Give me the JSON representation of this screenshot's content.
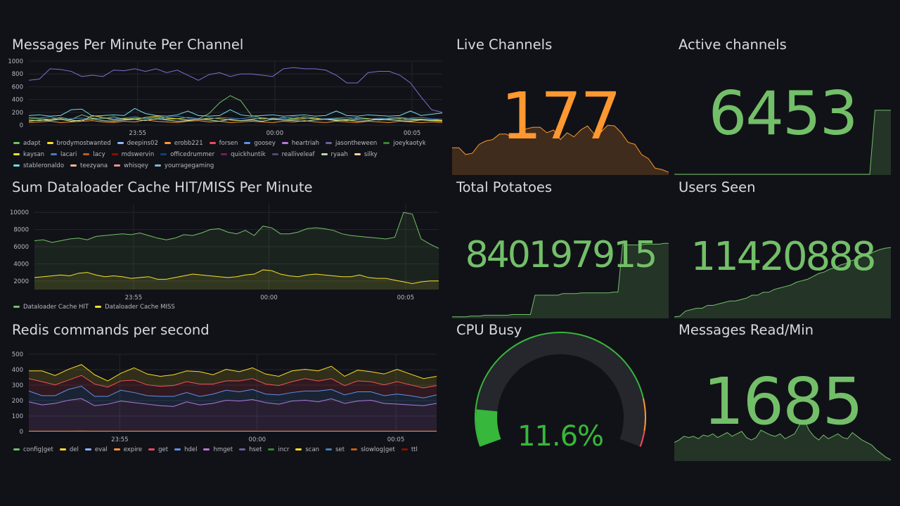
{
  "colors": {
    "bg": "#111217",
    "grid": "#24262c",
    "green": "#73bf69",
    "orange": "#ff9830",
    "yellow": "#fade2a",
    "red": "#f2495c",
    "blue": "#5794f2",
    "purple": "#b877d9",
    "gaugeTrack": "#25272d",
    "gaugeGreen": "#37b73b"
  },
  "panels": {
    "messages": {
      "title": "Messages Per Minute Per Channel",
      "legend": [
        {
          "name": "adapt",
          "color": "#73bf69"
        },
        {
          "name": "brodymostwanted",
          "color": "#fade2a"
        },
        {
          "name": "deepins02",
          "color": "#8ab8ff"
        },
        {
          "name": "erobb221",
          "color": "#ff9830"
        },
        {
          "name": "forsen",
          "color": "#f2495c"
        },
        {
          "name": "goosey",
          "color": "#5794f2"
        },
        {
          "name": "heartriah",
          "color": "#b877d9"
        },
        {
          "name": "jasontheween",
          "color": "#705da0"
        },
        {
          "name": "joeykaotyk",
          "color": "#37872d"
        },
        {
          "name": "kaysan",
          "color": "#fade2a"
        },
        {
          "name": "lacari",
          "color": "#447ebc"
        },
        {
          "name": "lacy",
          "color": "#c15c17"
        },
        {
          "name": "mdswervin",
          "color": "#890f02"
        },
        {
          "name": "officedrummer",
          "color": "#0a437c"
        },
        {
          "name": "quickhuntik",
          "color": "#6d1f62"
        },
        {
          "name": "realliveleaf",
          "color": "#584477"
        },
        {
          "name": "ryaah",
          "color": "#b7dbab"
        },
        {
          "name": "silky",
          "color": "#f4d598"
        },
        {
          "name": "stableronaldo",
          "color": "#70dbed"
        },
        {
          "name": "teezyana",
          "color": "#f9ba8f"
        },
        {
          "name": "whisqey",
          "color": "#f29191"
        },
        {
          "name": "yourragegaming",
          "color": "#82b5d8"
        }
      ],
      "chart_data": {
        "type": "line",
        "title": "Messages Per Minute Per Channel",
        "ylim": [
          0,
          1000
        ],
        "yticks": [
          0,
          200,
          400,
          600,
          800,
          1000
        ],
        "xticks": [
          "23:55",
          "00:00",
          "00:05"
        ],
        "series": [
          {
            "name": "jasontheween",
            "color": "#7d6fd1",
            "values": [
              700,
              720,
              880,
              870,
              840,
              760,
              780,
              760,
              860,
              850,
              880,
              840,
              880,
              820,
              860,
              780,
              700,
              790,
              820,
              760,
              800,
              800,
              780,
              760,
              880,
              900,
              880,
              880,
              860,
              780,
              660,
              660,
              820,
              840,
              840,
              780,
              660,
              440,
              240,
              200
            ]
          },
          {
            "name": "adapt",
            "color": "#73bf69",
            "values": [
              110,
              100,
              90,
              120,
              90,
              160,
              110,
              100,
              130,
              90,
              110,
              100,
              120,
              90,
              100,
              120,
              100,
              180,
              350,
              460,
              380,
              150,
              110,
              90,
              120,
              100,
              130,
              110,
              90,
              100,
              90,
              120,
              100,
              90,
              110,
              120,
              100,
              90,
              80,
              90
            ]
          },
          {
            "name": "stableronaldo",
            "color": "#70dbed",
            "values": [
              150,
              160,
              140,
              150,
              240,
              250,
              140,
              150,
              160,
              150,
              260,
              180,
              150,
              140,
              160,
              220,
              150,
              140,
              150,
              240,
              160,
              140,
              150,
              160,
              140,
              150,
              160,
              140,
              150,
              220,
              150,
              140,
              160,
              150,
              140,
              150,
              220,
              150,
              170,
              190
            ]
          },
          {
            "name": "kaysan",
            "color": "#fade2a",
            "values": [
              80,
              70,
              90,
              100,
              80,
              60,
              150,
              120,
              80,
              100,
              90,
              120,
              140,
              110,
              100,
              80,
              90,
              110,
              100,
              80,
              70,
              90,
              110,
              100,
              80,
              90,
              100,
              110,
              90,
              80,
              70,
              90,
              100,
              80,
              90,
              100,
              80,
              90,
              80,
              70
            ]
          },
          {
            "name": "erobb221",
            "color": "#ff9830",
            "values": [
              40,
              50,
              60,
              40,
              50,
              60,
              70,
              50,
              40,
              60,
              50,
              80,
              60,
              50,
              40,
              60,
              70,
              50,
              60,
              40,
              50,
              60,
              50,
              40,
              60,
              50,
              70,
              50,
              40,
              60,
              50,
              40,
              60,
              50,
              40,
              60,
              50,
              40,
              50,
              40
            ]
          },
          {
            "name": "lacari",
            "color": "#447ebc",
            "values": [
              120,
              110,
              130,
              90,
              100,
              110,
              90,
              120,
              100,
              110,
              130,
              100,
              90,
              120,
              140,
              110,
              100,
              90,
              120,
              110,
              100,
              120,
              90,
              110,
              100,
              130,
              110,
              90,
              100,
              110,
              120,
              100,
              90,
              110,
              100,
              90,
              110,
              120,
              100,
              90
            ]
          },
          {
            "name": "ryaah",
            "color": "#b7dbab",
            "values": [
              60,
              80,
              70,
              90,
              60,
              80,
              100,
              70,
              60,
              80,
              90,
              70,
              100,
              80,
              60,
              70,
              90,
              80,
              60,
              90,
              70,
              80,
              60,
              90,
              80,
              70,
              60,
              80,
              90,
              70,
              80,
              60,
              70,
              90,
              80,
              70,
              60,
              80,
              70,
              60
            ]
          }
        ]
      }
    },
    "dataloader": {
      "title": "Sum Dataloader Cache HIT/MISS Per Minute",
      "legend": [
        {
          "name": "Dataloader Cache HIT",
          "color": "#73bf69"
        },
        {
          "name": "Dataloader Cache MISS",
          "color": "#fade2a"
        }
      ],
      "chart_data": {
        "type": "area",
        "title": "Sum Dataloader Cache HIT/MISS Per Minute",
        "ylim": [
          1000,
          11000
        ],
        "yticks": [
          2000,
          4000,
          6000,
          8000,
          10000
        ],
        "xticks": [
          "23:55",
          "00:00",
          "00:05"
        ],
        "series": [
          {
            "name": "Dataloader Cache HIT",
            "color": "#73bf69",
            "values": [
              6700,
              6800,
              6500,
              6700,
              6900,
              7000,
              6800,
              7200,
              7300,
              7400,
              7500,
              7400,
              7600,
              7300,
              7000,
              6800,
              7000,
              7400,
              7300,
              7600,
              8000,
              8100,
              7700,
              7500,
              7900,
              7300,
              8400,
              8200,
              7500,
              7500,
              7700,
              8100,
              8200,
              8100,
              7900,
              7500,
              7300,
              7200,
              7100,
              7000,
              6900,
              7100,
              10000,
              9800,
              6900,
              6300,
              5800
            ]
          },
          {
            "name": "Dataloader Cache MISS",
            "color": "#fade2a",
            "values": [
              2400,
              2500,
              2600,
              2700,
              2600,
              2900,
              3000,
              2700,
              2500,
              2600,
              2500,
              2300,
              2400,
              2500,
              2200,
              2200,
              2400,
              2600,
              2800,
              2700,
              2600,
              2500,
              2400,
              2500,
              2700,
              2800,
              3300,
              3200,
              2800,
              2600,
              2500,
              2700,
              2800,
              2700,
              2600,
              2500,
              2500,
              2700,
              2400,
              2300,
              2300,
              2100,
              1900,
              1700,
              1900,
              2000,
              2000
            ]
          }
        ]
      }
    },
    "redis": {
      "title": "Redis commands per second",
      "legend": [
        {
          "name": "config|get",
          "color": "#73bf69"
        },
        {
          "name": "del",
          "color": "#fade2a"
        },
        {
          "name": "eval",
          "color": "#8ab8ff"
        },
        {
          "name": "expire",
          "color": "#ff9830"
        },
        {
          "name": "get",
          "color": "#f2495c"
        },
        {
          "name": "hdel",
          "color": "#5794f2"
        },
        {
          "name": "hmget",
          "color": "#b877d9"
        },
        {
          "name": "hset",
          "color": "#705da0"
        },
        {
          "name": "incr",
          "color": "#37872d"
        },
        {
          "name": "scan",
          "color": "#fade2a"
        },
        {
          "name": "set",
          "color": "#447ebc"
        },
        {
          "name": "slowlog|get",
          "color": "#c15c17"
        },
        {
          "name": "ttl",
          "color": "#890f02"
        }
      ],
      "chart_data": {
        "type": "area",
        "title": "Redis commands per second",
        "stacked": true,
        "ylim": [
          0,
          500
        ],
        "yticks": [
          0,
          100,
          200,
          300,
          400,
          500
        ],
        "xticks": [
          "23:55",
          "00:00",
          "00:05"
        ],
        "series": [
          {
            "name": "expire",
            "color": "#ff9830",
            "values": [
              2,
              2,
              2,
              2,
              3,
              2,
              2,
              2,
              2,
              2,
              2,
              2,
              2,
              2,
              2,
              2,
              2,
              2,
              2,
              2,
              2,
              2,
              2,
              2,
              2,
              2,
              2,
              2,
              2,
              2,
              2,
              2
            ]
          },
          {
            "name": "hmget",
            "color": "#b877d9",
            "values": [
              190,
              170,
              180,
              200,
              210,
              165,
              175,
              195,
              185,
              175,
              165,
              160,
              190,
              170,
              180,
              200,
              195,
              205,
              185,
              175,
              195,
              200,
              190,
              210,
              180,
              195,
              200,
              180,
              175,
              170,
              165,
              180
            ]
          },
          {
            "name": "hdel",
            "color": "#5794f2",
            "values": [
              70,
              60,
              50,
              70,
              80,
              60,
              50,
              70,
              65,
              55,
              60,
              65,
              60,
              55,
              60,
              65,
              60,
              65,
              55,
              60,
              55,
              60,
              70,
              60,
              55,
              60,
              55,
              50,
              65,
              60,
              50,
              55
            ]
          },
          {
            "name": "get",
            "color": "#f2495c",
            "values": [
              80,
              90,
              70,
              60,
              70,
              80,
              60,
              60,
              80,
              70,
              65,
              70,
              70,
              80,
              65,
              60,
              70,
              70,
              65,
              60,
              70,
              80,
              65,
              70,
              60,
              70,
              65,
              70,
              80,
              70,
              65,
              60
            ]
          },
          {
            "name": "scan",
            "color": "#fade2a",
            "values": [
              50,
              70,
              60,
              70,
              70,
              60,
              40,
              50,
              80,
              70,
              65,
              70,
              70,
              80,
              60,
              75,
              60,
              70,
              65,
              60,
              70,
              60,
              65,
              80,
              60,
              70,
              65,
              70,
              80,
              70,
              60,
              60
            ]
          }
        ]
      }
    },
    "live_channels": {
      "title": "Live Channels",
      "value": "177",
      "spark": [
        40,
        40,
        30,
        32,
        45,
        50,
        52,
        60,
        60,
        55,
        62,
        68,
        70,
        70,
        62,
        66,
        52,
        62,
        56,
        66,
        72,
        60,
        63,
        73,
        72,
        62,
        48,
        45,
        30,
        24,
        10,
        8,
        4
      ]
    },
    "active_channels": {
      "title": "Active channels",
      "value": "6453",
      "spark": [
        1,
        1,
        1,
        1,
        1,
        1,
        1,
        1,
        1,
        1,
        1,
        1,
        1,
        1,
        1,
        1,
        1,
        1,
        1,
        1,
        1,
        1,
        1,
        1,
        1,
        1,
        1,
        1,
        1,
        1,
        1,
        1,
        1,
        1,
        1,
        1,
        1,
        1,
        95,
        95,
        95,
        95
      ]
    },
    "potatoes": {
      "title": "Total Potatoes",
      "value": "840197915",
      "spark": [
        2,
        2,
        2,
        2,
        3,
        3,
        3,
        4,
        4,
        4,
        4,
        4,
        4,
        5,
        5,
        5,
        5,
        5,
        30,
        30,
        30,
        30,
        30,
        30,
        32,
        32,
        32,
        32,
        33,
        33,
        33,
        33,
        33,
        33,
        33,
        34,
        34,
        95,
        95,
        95,
        95,
        95,
        96,
        96,
        96,
        96,
        97,
        97
      ]
    },
    "users_seen": {
      "title": "Users Seen",
      "value": "11420888",
      "spark": [
        2,
        3,
        10,
        12,
        14,
        14,
        18,
        18,
        20,
        22,
        24,
        24,
        26,
        28,
        32,
        32,
        36,
        36,
        40,
        42,
        44,
        46,
        50,
        52,
        54,
        58,
        62,
        64,
        68,
        70,
        74,
        76,
        80,
        82,
        86,
        88,
        92,
        95,
        97,
        98
      ]
    },
    "cpu_busy": {
      "title": "CPU Busy",
      "value": "11.6%",
      "percent": 11.6,
      "thresholds": [
        {
          "from": 0,
          "to": 85,
          "color": "#37b73b"
        },
        {
          "from": 85,
          "to": 95,
          "color": "#ff9830"
        },
        {
          "from": 95,
          "to": 100,
          "color": "#f2495c"
        }
      ]
    },
    "messages_read": {
      "title": "Messages Read/Min",
      "value": "1685",
      "spark": [
        30,
        34,
        40,
        38,
        40,
        36,
        42,
        40,
        44,
        38,
        42,
        46,
        40,
        44,
        48,
        38,
        34,
        38,
        50,
        46,
        42,
        40,
        44,
        36,
        40,
        44,
        58,
        66,
        50,
        40,
        34,
        42,
        36,
        40,
        44,
        38,
        36,
        46,
        40,
        34,
        30,
        26,
        18,
        12,
        6,
        2
      ]
    }
  }
}
